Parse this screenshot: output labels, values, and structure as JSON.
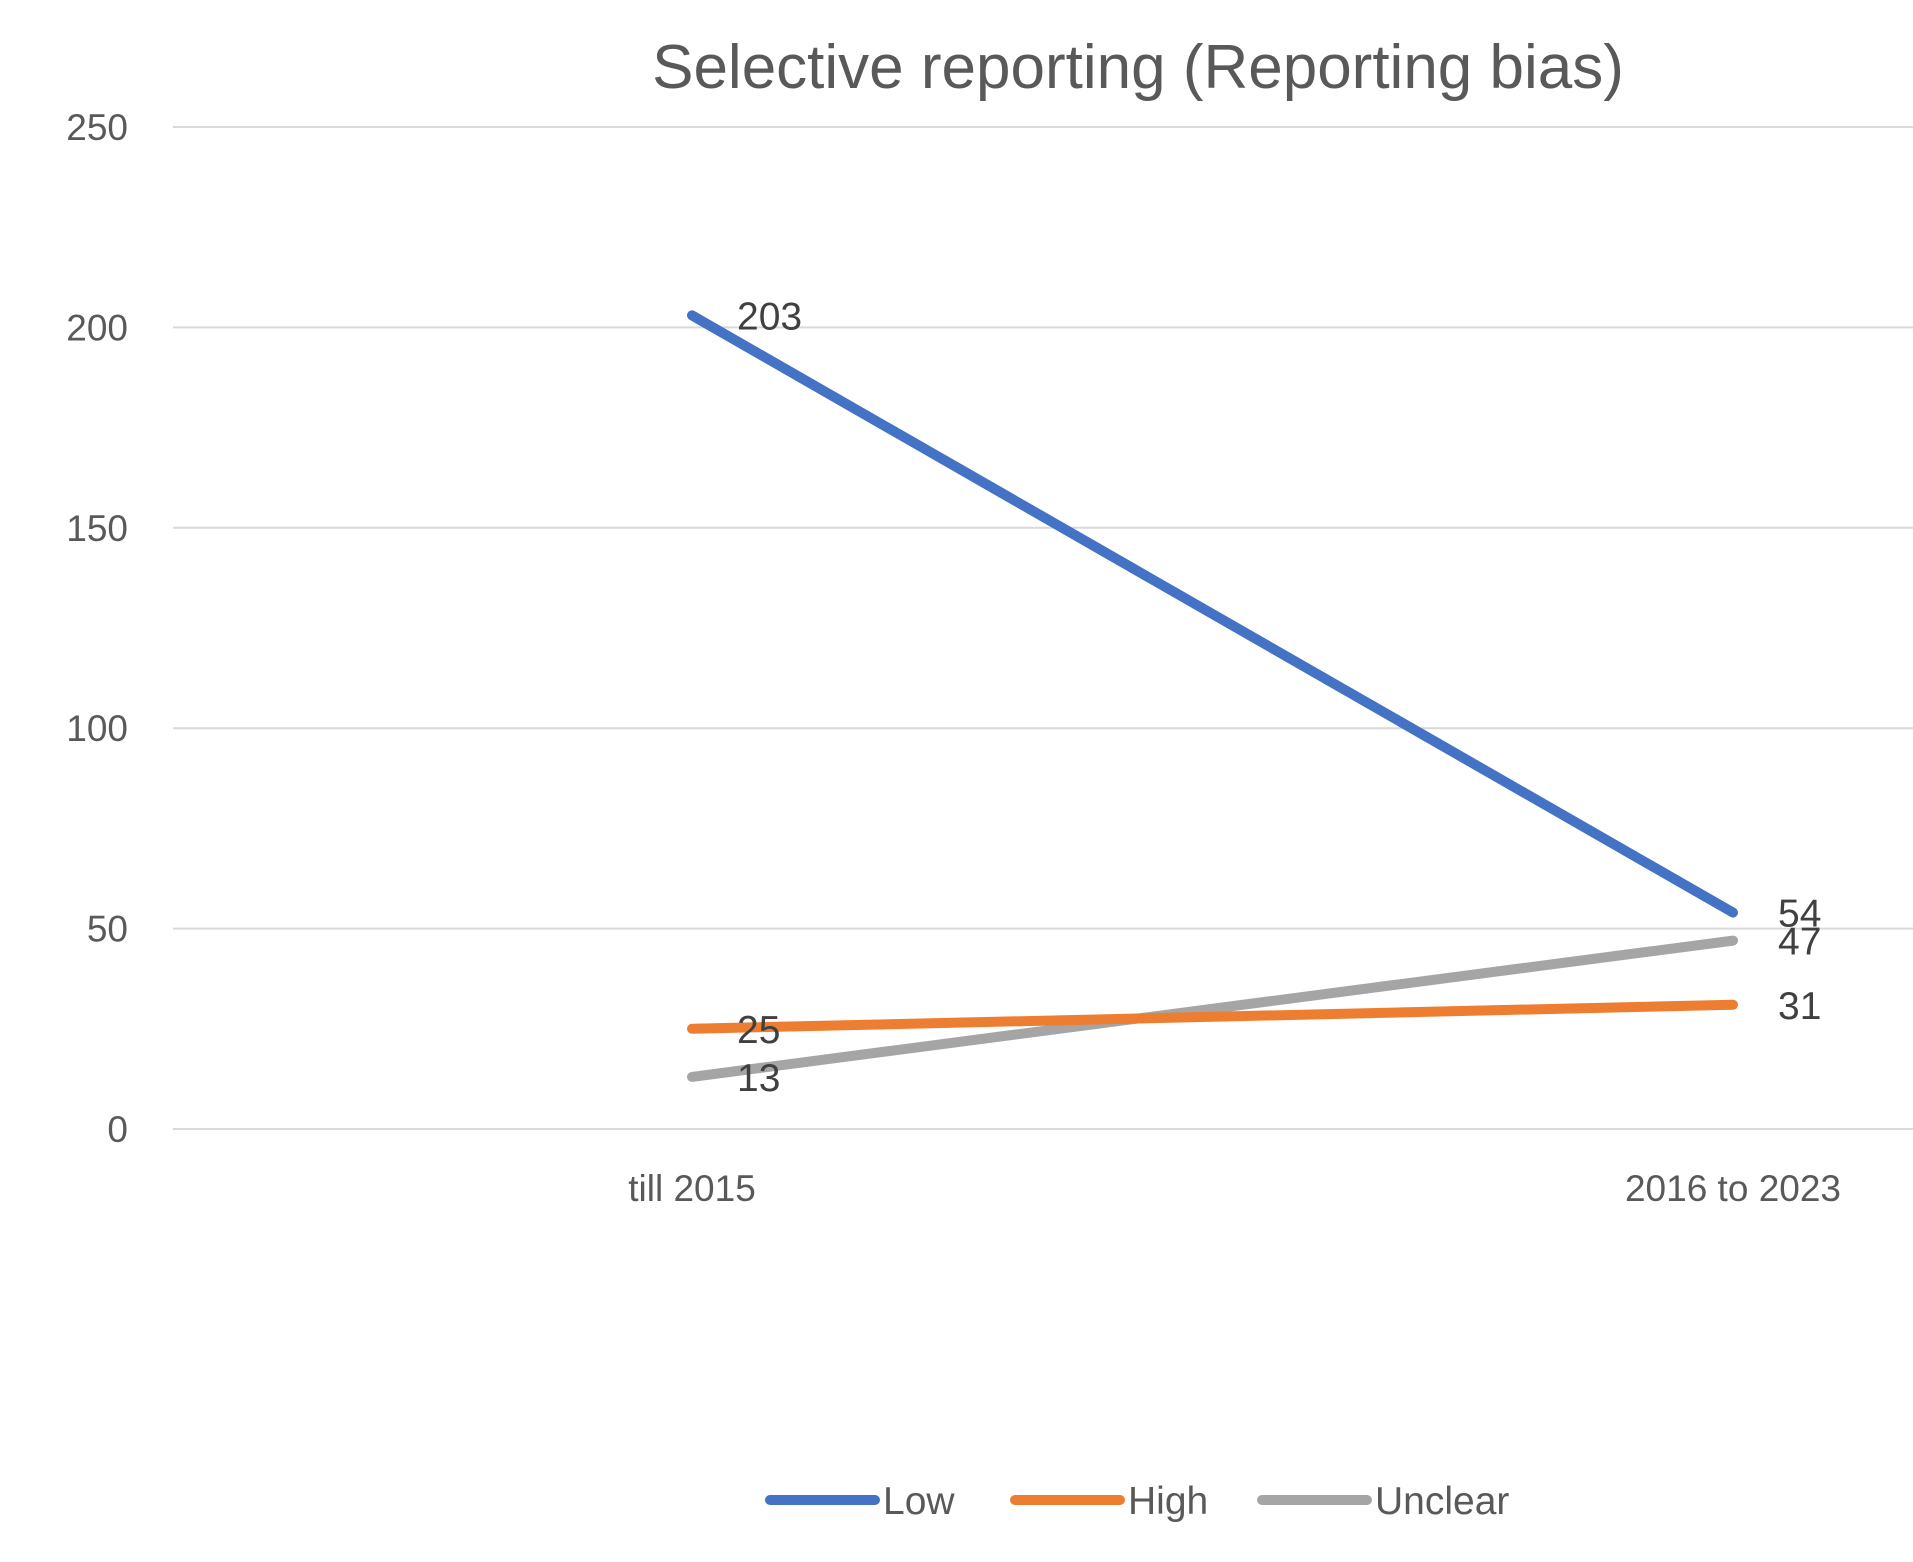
{
  "chart_data": {
    "type": "line",
    "title": "Selective reporting (Reporting bias)",
    "xlabel": "",
    "ylabel": "",
    "categories": [
      "till 2015",
      "2016 to 2023"
    ],
    "ylim": [
      0,
      250
    ],
    "yticks": [
      "0",
      "50",
      "100",
      "150",
      "200",
      "250"
    ],
    "grid": true,
    "legend_position": "bottom",
    "data_labels": true,
    "series": [
      {
        "name": "Low",
        "values": [
          203,
          54
        ],
        "color": "#4472C4"
      },
      {
        "name": "High",
        "values": [
          25,
          31
        ],
        "color": "#ED7D31"
      },
      {
        "name": "Unclear",
        "values": [
          13,
          47
        ],
        "color": "#A5A5A5"
      }
    ]
  },
  "colors": {
    "gridline": "#D9D9D9",
    "title_text": "#595959",
    "tick_text": "#595959",
    "data_label_text": "#404040"
  }
}
